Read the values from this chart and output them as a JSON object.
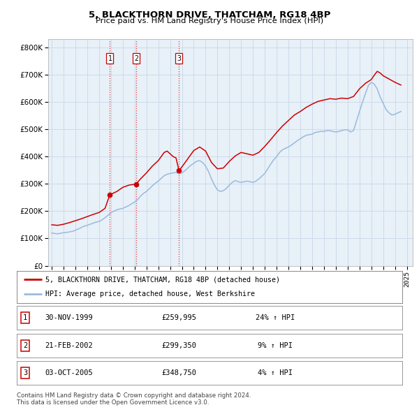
{
  "title": "5, BLACKTHORN DRIVE, THATCHAM, RG18 4BP",
  "subtitle": "Price paid vs. HM Land Registry's House Price Index (HPI)",
  "legend_label_red": "5, BLACKTHORN DRIVE, THATCHAM, RG18 4BP (detached house)",
  "legend_label_blue": "HPI: Average price, detached house, West Berkshire",
  "footer_line1": "Contains HM Land Registry data © Crown copyright and database right 2024.",
  "footer_line2": "This data is licensed under the Open Government Licence v3.0.",
  "transactions": [
    {
      "num": 1,
      "date": "30-NOV-1999",
      "price": 259995,
      "hpi_pct": "24%",
      "date_x": 1999.91
    },
    {
      "num": 2,
      "date": "21-FEB-2002",
      "price": 299350,
      "hpi_pct": "9%",
      "date_x": 2002.13
    },
    {
      "num": 3,
      "date": "03-OCT-2005",
      "price": 348750,
      "hpi_pct": "4%",
      "date_x": 2005.75
    }
  ],
  "vline_color": "#dd4444",
  "dot_color": "#cc0000",
  "red_line_color": "#cc0000",
  "blue_line_color": "#99bbdd",
  "grid_color": "#c8d8e8",
  "plot_bg_color": "#e8f0f8",
  "ylim": [
    0,
    830000
  ],
  "xlim_start": 1994.7,
  "xlim_end": 2025.5,
  "yticks": [
    0,
    100000,
    200000,
    300000,
    400000,
    500000,
    600000,
    700000,
    800000
  ],
  "ytick_labels": [
    "£0",
    "£100K",
    "£200K",
    "£300K",
    "£400K",
    "£500K",
    "£600K",
    "£700K",
    "£800K"
  ],
  "xticks": [
    1995,
    1996,
    1997,
    1998,
    1999,
    2000,
    2001,
    2002,
    2003,
    2004,
    2005,
    2006,
    2007,
    2008,
    2009,
    2010,
    2011,
    2012,
    2013,
    2014,
    2015,
    2016,
    2017,
    2018,
    2019,
    2020,
    2021,
    2022,
    2023,
    2024,
    2025
  ],
  "hpi_data_x": [
    1995.0,
    1995.25,
    1995.5,
    1995.75,
    1996.0,
    1996.25,
    1996.5,
    1996.75,
    1997.0,
    1997.25,
    1997.5,
    1997.75,
    1998.0,
    1998.25,
    1998.5,
    1998.75,
    1999.0,
    1999.25,
    1999.5,
    1999.75,
    2000.0,
    2000.25,
    2000.5,
    2000.75,
    2001.0,
    2001.25,
    2001.5,
    2001.75,
    2002.0,
    2002.25,
    2002.5,
    2002.75,
    2003.0,
    2003.25,
    2003.5,
    2003.75,
    2004.0,
    2004.25,
    2004.5,
    2004.75,
    2005.0,
    2005.25,
    2005.5,
    2005.75,
    2006.0,
    2006.25,
    2006.5,
    2006.75,
    2007.0,
    2007.25,
    2007.5,
    2007.75,
    2008.0,
    2008.25,
    2008.5,
    2008.75,
    2009.0,
    2009.25,
    2009.5,
    2009.75,
    2010.0,
    2010.25,
    2010.5,
    2010.75,
    2011.0,
    2011.25,
    2011.5,
    2011.75,
    2012.0,
    2012.25,
    2012.5,
    2012.75,
    2013.0,
    2013.25,
    2013.5,
    2013.75,
    2014.0,
    2014.25,
    2014.5,
    2014.75,
    2015.0,
    2015.25,
    2015.5,
    2015.75,
    2016.0,
    2016.25,
    2016.5,
    2016.75,
    2017.0,
    2017.25,
    2017.5,
    2017.75,
    2018.0,
    2018.25,
    2018.5,
    2018.75,
    2019.0,
    2019.25,
    2019.5,
    2019.75,
    2020.0,
    2020.25,
    2020.5,
    2020.75,
    2021.0,
    2021.25,
    2021.5,
    2021.75,
    2022.0,
    2022.25,
    2022.5,
    2022.75,
    2023.0,
    2023.25,
    2023.5,
    2023.75,
    2024.0,
    2024.25,
    2024.5
  ],
  "hpi_data_y": [
    120000,
    118000,
    117000,
    119000,
    121000,
    122000,
    124000,
    126000,
    130000,
    135000,
    140000,
    145000,
    148000,
    152000,
    156000,
    160000,
    162000,
    168000,
    176000,
    185000,
    194000,
    200000,
    205000,
    208000,
    210000,
    215000,
    220000,
    227000,
    233000,
    242000,
    255000,
    265000,
    272000,
    282000,
    293000,
    302000,
    310000,
    320000,
    330000,
    335000,
    338000,
    340000,
    342000,
    336000,
    340000,
    348000,
    358000,
    368000,
    375000,
    383000,
    385000,
    378000,
    365000,
    345000,
    318000,
    295000,
    278000,
    272000,
    275000,
    283000,
    295000,
    305000,
    312000,
    308000,
    305000,
    308000,
    310000,
    308000,
    305000,
    310000,
    318000,
    328000,
    338000,
    355000,
    372000,
    388000,
    400000,
    415000,
    425000,
    430000,
    435000,
    442000,
    450000,
    458000,
    465000,
    472000,
    478000,
    480000,
    482000,
    488000,
    490000,
    492000,
    492000,
    495000,
    495000,
    492000,
    490000,
    492000,
    495000,
    498000,
    498000,
    490000,
    495000,
    530000,
    565000,
    598000,
    630000,
    660000,
    672000,
    665000,
    648000,
    618000,
    595000,
    572000,
    560000,
    552000,
    555000,
    560000,
    565000
  ],
  "red_data_x": [
    1995.0,
    1995.5,
    1996.0,
    1996.5,
    1997.0,
    1997.5,
    1998.0,
    1998.5,
    1999.0,
    1999.5,
    1999.91,
    2000.5,
    2001.0,
    2001.5,
    2002.13,
    2002.5,
    2003.0,
    2003.5,
    2004.0,
    2004.5,
    2004.75,
    2005.0,
    2005.25,
    2005.5,
    2005.75,
    2006.0,
    2006.5,
    2007.0,
    2007.5,
    2008.0,
    2008.5,
    2009.0,
    2009.5,
    2010.0,
    2010.5,
    2011.0,
    2011.5,
    2012.0,
    2012.5,
    2013.0,
    2013.5,
    2014.0,
    2014.5,
    2015.0,
    2015.5,
    2016.0,
    2016.5,
    2017.0,
    2017.5,
    2018.0,
    2018.5,
    2019.0,
    2019.5,
    2020.0,
    2020.5,
    2021.0,
    2021.5,
    2022.0,
    2022.25,
    2022.5,
    2022.75,
    2023.0,
    2023.5,
    2024.0,
    2024.5
  ],
  "red_data_y": [
    150000,
    148000,
    152000,
    158000,
    165000,
    172000,
    180000,
    188000,
    195000,
    210000,
    259995,
    272000,
    287000,
    295000,
    299350,
    318000,
    340000,
    365000,
    385000,
    415000,
    420000,
    410000,
    400000,
    395000,
    348750,
    362000,
    392000,
    422000,
    435000,
    420000,
    378000,
    355000,
    358000,
    382000,
    402000,
    415000,
    410000,
    405000,
    415000,
    437000,
    462000,
    488000,
    512000,
    532000,
    552000,
    565000,
    580000,
    592000,
    602000,
    607000,
    612000,
    610000,
    614000,
    612000,
    620000,
    648000,
    668000,
    682000,
    698000,
    712000,
    706000,
    696000,
    684000,
    672000,
    662000
  ]
}
